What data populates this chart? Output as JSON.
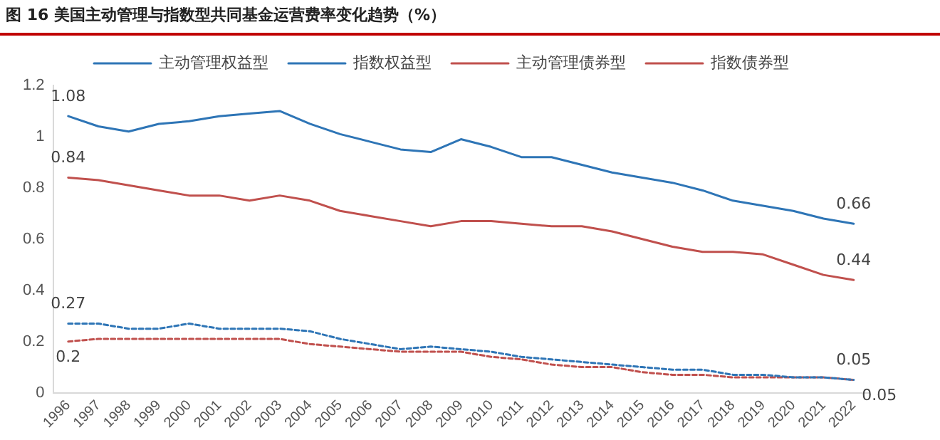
{
  "chart_data": {
    "type": "line",
    "title": "图 16 美国主动管理与指数型共同基金运营费率变化趋势（%）",
    "categories": [
      "1996",
      "1997",
      "1998",
      "1999",
      "2000",
      "2001",
      "2002",
      "2003",
      "2004",
      "2005",
      "2006",
      "2007",
      "2008",
      "2009",
      "2010",
      "2011",
      "2012",
      "2013",
      "2014",
      "2015",
      "2016",
      "2017",
      "2018",
      "2019",
      "2020",
      "2021",
      "2022"
    ],
    "series": [
      {
        "name": "主动管理权益型",
        "color": "#2e75b6",
        "line_style": "solid",
        "values": [
          1.08,
          1.04,
          1.02,
          1.05,
          1.06,
          1.08,
          1.09,
          1.1,
          1.05,
          1.01,
          0.98,
          0.95,
          0.94,
          0.99,
          0.96,
          0.92,
          0.92,
          0.89,
          0.86,
          0.84,
          0.82,
          0.79,
          0.75,
          0.73,
          0.71,
          0.68,
          0.66
        ],
        "value_labels": [
          "1.08",
          null,
          null,
          null,
          null,
          null,
          null,
          null,
          null,
          null,
          null,
          null,
          null,
          null,
          null,
          null,
          null,
          null,
          null,
          null,
          null,
          null,
          null,
          null,
          null,
          null,
          "0.66"
        ]
      },
      {
        "name": "指数权益型",
        "color": "#2e75b6",
        "line_style": "dashed",
        "values": [
          0.27,
          0.27,
          0.25,
          0.25,
          0.27,
          0.25,
          0.25,
          0.25,
          0.24,
          0.21,
          0.19,
          0.17,
          0.18,
          0.17,
          0.16,
          0.14,
          0.13,
          0.12,
          0.11,
          0.1,
          0.09,
          0.09,
          0.07,
          0.07,
          0.06,
          0.06,
          0.05
        ],
        "value_labels": [
          "0.27",
          null,
          null,
          null,
          null,
          null,
          null,
          null,
          null,
          null,
          null,
          null,
          null,
          null,
          null,
          null,
          null,
          null,
          null,
          null,
          null,
          null,
          null,
          null,
          null,
          null,
          "0.05"
        ]
      },
      {
        "name": "主动管理债券型",
        "color": "#c0504d",
        "line_style": "solid",
        "values": [
          0.84,
          0.83,
          0.81,
          0.79,
          0.77,
          0.77,
          0.75,
          0.77,
          0.75,
          0.71,
          0.69,
          0.67,
          0.65,
          0.67,
          0.67,
          0.66,
          0.65,
          0.65,
          0.63,
          0.6,
          0.57,
          0.55,
          0.55,
          0.54,
          0.5,
          0.46,
          0.44
        ],
        "value_labels": [
          "0.84",
          null,
          null,
          null,
          null,
          null,
          null,
          null,
          null,
          null,
          null,
          null,
          null,
          null,
          null,
          null,
          null,
          null,
          null,
          null,
          null,
          null,
          null,
          null,
          null,
          null,
          "0.44"
        ]
      },
      {
        "name": "指数债券型",
        "color": "#c0504d",
        "line_style": "dashed",
        "values": [
          0.2,
          0.21,
          0.21,
          0.21,
          0.21,
          0.21,
          0.21,
          0.21,
          0.19,
          0.18,
          0.17,
          0.16,
          0.16,
          0.16,
          0.14,
          0.13,
          0.11,
          0.1,
          0.1,
          0.08,
          0.07,
          0.07,
          0.06,
          0.06,
          0.06,
          0.06,
          0.05
        ],
        "value_labels": [
          "0.2",
          null,
          null,
          null,
          null,
          null,
          null,
          null,
          null,
          null,
          null,
          null,
          null,
          null,
          null,
          null,
          null,
          null,
          null,
          null,
          null,
          null,
          null,
          null,
          null,
          null,
          "0.05"
        ]
      }
    ],
    "ylim": [
      0,
      1.2
    ],
    "yticks": [
      0,
      0.2,
      0.4,
      0.6,
      0.8,
      1,
      1.2
    ],
    "grid": false,
    "legend": "top",
    "marker": "none"
  }
}
